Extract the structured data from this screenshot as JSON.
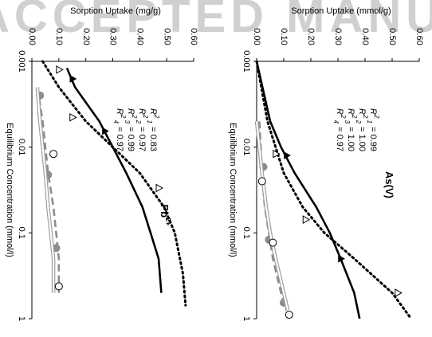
{
  "watermark": "ACCEPTED MANUSCRIPT",
  "chart_data": [
    {
      "type": "line",
      "title": "Pb2+",
      "title_main": "Pb",
      "title_sup": "2+",
      "xlabel": "Equilibrium Concentration (mmol/l)",
      "ylabel": "Sorption Uptake (mg/g)",
      "xscale": "log",
      "xlim": [
        0.001,
        1
      ],
      "ylim": [
        0,
        0.6
      ],
      "xticks": [
        "0.001",
        "0.01",
        "0.1",
        "1"
      ],
      "yticks": [
        "0.00",
        "0.10",
        "0.20",
        "0.30",
        "0.40",
        "0.50",
        "0.60"
      ],
      "orientation": "rotated 90 degrees clockwise",
      "r2_labels": [
        {
          "sub": "1",
          "value": "= 0.83"
        },
        {
          "sub": "2",
          "value": "= 0.97"
        },
        {
          "sub": "3",
          "value": "= 0.99"
        },
        {
          "sub": "4",
          "value": "= 0.97"
        }
      ],
      "series": [
        {
          "style": "dotted",
          "marker": "triangle",
          "points": [
            [
              0.00125,
              0.1
            ],
            [
              0.0045,
              0.15
            ],
            [
              0.03,
              0.47
            ]
          ],
          "curve": [
            [
              0.001,
              0.04
            ],
            [
              0.002,
              0.1
            ],
            [
              0.005,
              0.2
            ],
            [
              0.01,
              0.3
            ],
            [
              0.02,
              0.4
            ],
            [
              0.05,
              0.49
            ],
            [
              0.1,
              0.53
            ],
            [
              0.3,
              0.56
            ],
            [
              0.7,
              0.57
            ]
          ]
        },
        {
          "style": "solid",
          "marker": "filled-triangle",
          "points": [
            [
              0.0016,
              0.15
            ],
            [
              0.0065,
              0.27
            ]
          ],
          "curve": [
            [
              0.0012,
              0.13
            ],
            [
              0.002,
              0.16
            ],
            [
              0.005,
              0.25
            ],
            [
              0.01,
              0.3
            ],
            [
              0.02,
              0.35
            ],
            [
              0.05,
              0.41
            ],
            [
              0.1,
              0.44
            ],
            [
              0.2,
              0.47
            ],
            [
              0.5,
              0.48
            ]
          ]
        },
        {
          "style": "dashed",
          "marker": "filled-circle",
          "points": [
            [
              0.0025,
              0.03
            ],
            [
              0.021,
              0.06
            ],
            [
              0.15,
              0.09
            ]
          ],
          "curve": [
            [
              0.002,
              0.02
            ],
            [
              0.005,
              0.04
            ],
            [
              0.01,
              0.05
            ],
            [
              0.02,
              0.06
            ],
            [
              0.05,
              0.08
            ],
            [
              0.1,
              0.09
            ],
            [
              0.2,
              0.1
            ],
            [
              0.5,
              0.1
            ]
          ]
        },
        {
          "style": "solid-gray",
          "marker": "open-circle",
          "points": [
            [
              0.012,
              0.08
            ],
            [
              0.42,
              0.1
            ]
          ],
          "curve": [
            [
              0.002,
              0.02
            ],
            [
              0.005,
              0.03
            ],
            [
              0.01,
              0.04
            ],
            [
              0.02,
              0.05
            ],
            [
              0.05,
              0.06
            ],
            [
              0.1,
              0.07
            ],
            [
              0.2,
              0.08
            ],
            [
              0.5,
              0.08
            ]
          ]
        }
      ]
    },
    {
      "type": "line",
      "title": "As(V)",
      "title_main": "As(V)",
      "title_sup": "",
      "xlabel": "Equilibrium Concentration (mmol/l)",
      "ylabel": "Sorption Uptake (mmol/g)",
      "xscale": "log",
      "xlim": [
        0.001,
        1
      ],
      "ylim": [
        0,
        0.6
      ],
      "xticks": [
        "0.001",
        "0.01",
        "0.1",
        "1"
      ],
      "yticks": [
        "0.00",
        "0.10",
        "0.20",
        "0.30",
        "0.40",
        "0.50",
        "0.60"
      ],
      "orientation": "rotated 90 degrees clockwise",
      "r2_labels": [
        {
          "sub": "1",
          "value": "= 0.99"
        },
        {
          "sub": "2",
          "value": "= 1.00"
        },
        {
          "sub": "3",
          "value": "= 1.00"
        },
        {
          "sub": "4",
          "value": "= 0.97"
        }
      ],
      "series": [
        {
          "style": "dotted",
          "marker": "triangle",
          "points": [
            [
              0.012,
              0.07
            ],
            [
              0.07,
              0.18
            ],
            [
              0.5,
              0.52
            ]
          ],
          "curve": [
            [
              0.001,
              0.0
            ],
            [
              0.005,
              0.04
            ],
            [
              0.01,
              0.07
            ],
            [
              0.02,
              0.1
            ],
            [
              0.05,
              0.17
            ],
            [
              0.1,
              0.25
            ],
            [
              0.2,
              0.36
            ],
            [
              0.5,
              0.5
            ],
            [
              1,
              0.57
            ]
          ]
        },
        {
          "style": "solid",
          "marker": "filled-triangle",
          "points": [
            [
              0.0125,
              0.11
            ],
            [
              0.2,
              0.31
            ]
          ],
          "curve": [
            [
              0.001,
              0.0
            ],
            [
              0.005,
              0.05
            ],
            [
              0.01,
              0.09
            ],
            [
              0.02,
              0.14
            ],
            [
              0.05,
              0.22
            ],
            [
              0.1,
              0.27
            ],
            [
              0.2,
              0.31
            ],
            [
              0.5,
              0.36
            ],
            [
              1,
              0.38
            ]
          ]
        },
        {
          "style": "dashed",
          "marker": "filled-circle",
          "points": [
            [
              0.017,
              0.025
            ],
            [
              0.12,
              0.045
            ],
            [
              0.65,
              0.1
            ]
          ],
          "curve": [
            [
              0.005,
              0.01
            ],
            [
              0.02,
              0.02
            ],
            [
              0.05,
              0.03
            ],
            [
              0.1,
              0.045
            ],
            [
              0.2,
              0.06
            ],
            [
              0.5,
              0.09
            ],
            [
              0.8,
              0.11
            ]
          ]
        },
        {
          "style": "solid-gray",
          "marker": "open-circle",
          "points": [
            [
              0.025,
              0.02
            ],
            [
              0.13,
              0.06
            ],
            [
              0.9,
              0.12
            ]
          ],
          "curve": [
            [
              0.005,
              0.0
            ],
            [
              0.02,
              0.02
            ],
            [
              0.05,
              0.035
            ],
            [
              0.1,
              0.05
            ],
            [
              0.2,
              0.07
            ],
            [
              0.5,
              0.1
            ],
            [
              0.8,
              0.115
            ]
          ]
        }
      ]
    }
  ]
}
